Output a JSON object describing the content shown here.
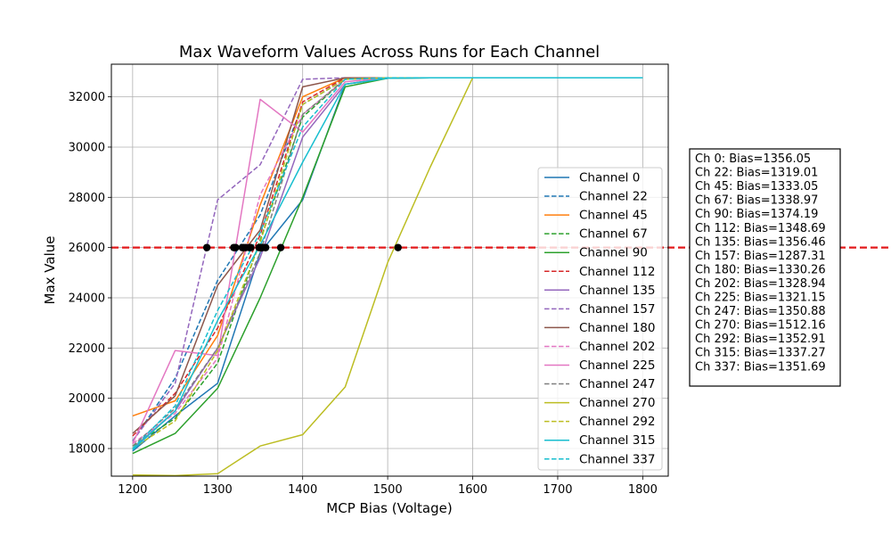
{
  "chart_data": {
    "type": "line",
    "title": "Max Waveform Values Across Runs for Each Channel",
    "xlabel": "MCP Bias (Voltage)",
    "ylabel": "Max Value",
    "xlim": [
      1175,
      1830
    ],
    "ylim": [
      16900,
      33300
    ],
    "xticks": [
      1200,
      1300,
      1400,
      1500,
      1600,
      1700,
      1800
    ],
    "yticks": [
      18000,
      20000,
      22000,
      24000,
      26000,
      28000,
      30000,
      32000
    ],
    "grid": true,
    "legend_position": "center-right",
    "threshold": {
      "value": 26000,
      "color": "#e31a1c",
      "style": "dashed"
    },
    "x": [
      1200,
      1250,
      1300,
      1350,
      1400,
      1450,
      1500,
      1550,
      1600,
      1650,
      1700,
      1750,
      1800
    ],
    "series": [
      {
        "name": "Channel 0",
        "color": "#1f77b4",
        "dash": false,
        "values": [
          17900,
          19300,
          20600,
          25800,
          27900,
          32500,
          32740,
          32760,
          32760,
          32760,
          32760,
          32760,
          32760
        ]
      },
      {
        "name": "Channel 22",
        "color": "#1f77b4",
        "dash": true,
        "values": [
          18300,
          20800,
          24700,
          27300,
          31700,
          32700,
          32760,
          32760,
          32760,
          32760,
          32760,
          32760,
          32760
        ]
      },
      {
        "name": "Channel 45",
        "color": "#ff7f0e",
        "dash": false,
        "values": [
          19300,
          19900,
          22500,
          27700,
          32000,
          32760,
          32760,
          32760,
          32760,
          32760,
          32760,
          32760,
          32760
        ]
      },
      {
        "name": "Channel 67",
        "color": "#2ca02c",
        "dash": true,
        "values": [
          18100,
          19200,
          21400,
          26300,
          31200,
          32700,
          32760,
          32760,
          32760,
          32760,
          32760,
          32760,
          32760
        ]
      },
      {
        "name": "Channel 90",
        "color": "#2ca02c",
        "dash": false,
        "values": [
          17800,
          18600,
          20400,
          24000,
          28000,
          32400,
          32740,
          32760,
          32760,
          32760,
          32760,
          32760,
          32760
        ]
      },
      {
        "name": "Channel 112",
        "color": "#d62728",
        "dash": true,
        "values": [
          18500,
          20200,
          22800,
          26500,
          31800,
          32760,
          32760,
          32760,
          32760,
          32760,
          32760,
          32760,
          32760
        ]
      },
      {
        "name": "Channel 135",
        "color": "#9467bd",
        "dash": false,
        "values": [
          18000,
          19500,
          22000,
          25600,
          30400,
          32500,
          32760,
          32760,
          32760,
          32760,
          32760,
          32760,
          32760
        ]
      },
      {
        "name": "Channel 157",
        "color": "#9467bd",
        "dash": true,
        "values": [
          18300,
          20600,
          27900,
          29300,
          32700,
          32760,
          32760,
          32760,
          32760,
          32760,
          32760,
          32760,
          32760
        ]
      },
      {
        "name": "Channel 180",
        "color": "#8c564b",
        "dash": false,
        "values": [
          18600,
          20100,
          24500,
          26700,
          32400,
          32760,
          32760,
          32760,
          32760,
          32760,
          32760,
          32760,
          32760
        ]
      },
      {
        "name": "Channel 202",
        "color": "#e377c2",
        "dash": true,
        "values": [
          18200,
          19400,
          21600,
          28100,
          31300,
          32700,
          32760,
          32760,
          32760,
          32760,
          32760,
          32760,
          32760
        ]
      },
      {
        "name": "Channel 225",
        "color": "#e377c2",
        "dash": false,
        "values": [
          18200,
          21900,
          21700,
          31900,
          30600,
          32600,
          32760,
          32760,
          32760,
          32760,
          32760,
          32760,
          32760
        ]
      },
      {
        "name": "Channel 247",
        "color": "#7f7f7f",
        "dash": true,
        "values": [
          18100,
          19600,
          22000,
          25800,
          31300,
          32700,
          32760,
          32760,
          32760,
          32760,
          32760,
          32760,
          32760
        ]
      },
      {
        "name": "Channel 270",
        "color": "#bcbd22",
        "dash": false,
        "values": [
          16950,
          16920,
          17000,
          18100,
          18550,
          20450,
          25400,
          29200,
          32760,
          32760,
          32760,
          32760,
          32760
        ]
      },
      {
        "name": "Channel 292",
        "color": "#bcbd22",
        "dash": true,
        "values": [
          18000,
          19100,
          21900,
          26200,
          31700,
          32700,
          32760,
          32760,
          32760,
          32760,
          32760,
          32760,
          32760
        ]
      },
      {
        "name": "Channel 315",
        "color": "#17becf",
        "dash": false,
        "values": [
          17950,
          19500,
          23100,
          26100,
          29400,
          32500,
          32740,
          32760,
          32760,
          32760,
          32760,
          32760,
          32760
        ]
      },
      {
        "name": "Channel 337",
        "color": "#17becf",
        "dash": true,
        "values": [
          18000,
          19700,
          23500,
          26600,
          30800,
          32700,
          32760,
          32760,
          32760,
          32760,
          32760,
          32760,
          32760
        ]
      }
    ],
    "crossings": [
      {
        "x": 1356.05,
        "y": 26000
      },
      {
        "x": 1319.01,
        "y": 26000
      },
      {
        "x": 1333.05,
        "y": 26000
      },
      {
        "x": 1338.97,
        "y": 26000
      },
      {
        "x": 1374.19,
        "y": 26000
      },
      {
        "x": 1348.69,
        "y": 26000
      },
      {
        "x": 1356.46,
        "y": 26000
      },
      {
        "x": 1287.31,
        "y": 26000
      },
      {
        "x": 1330.26,
        "y": 26000
      },
      {
        "x": 1328.94,
        "y": 26000
      },
      {
        "x": 1321.15,
        "y": 26000
      },
      {
        "x": 1350.88,
        "y": 26000
      },
      {
        "x": 1512.16,
        "y": 26000
      },
      {
        "x": 1352.91,
        "y": 26000
      },
      {
        "x": 1337.27,
        "y": 26000
      },
      {
        "x": 1351.69,
        "y": 26000
      }
    ],
    "bias_box": [
      "Ch 0: Bias=1356.05",
      "Ch 22: Bias=1319.01",
      "Ch 45: Bias=1333.05",
      "Ch 67: Bias=1338.97",
      "Ch 90: Bias=1374.19",
      "Ch 112: Bias=1348.69",
      "Ch 135: Bias=1356.46",
      "Ch 157: Bias=1287.31",
      "Ch 180: Bias=1330.26",
      "Ch 202: Bias=1328.94",
      "Ch 225: Bias=1321.15",
      "Ch 247: Bias=1350.88",
      "Ch 270: Bias=1512.16",
      "Ch 292: Bias=1352.91",
      "Ch 315: Bias=1337.27",
      "Ch 337: Bias=1351.69"
    ]
  }
}
